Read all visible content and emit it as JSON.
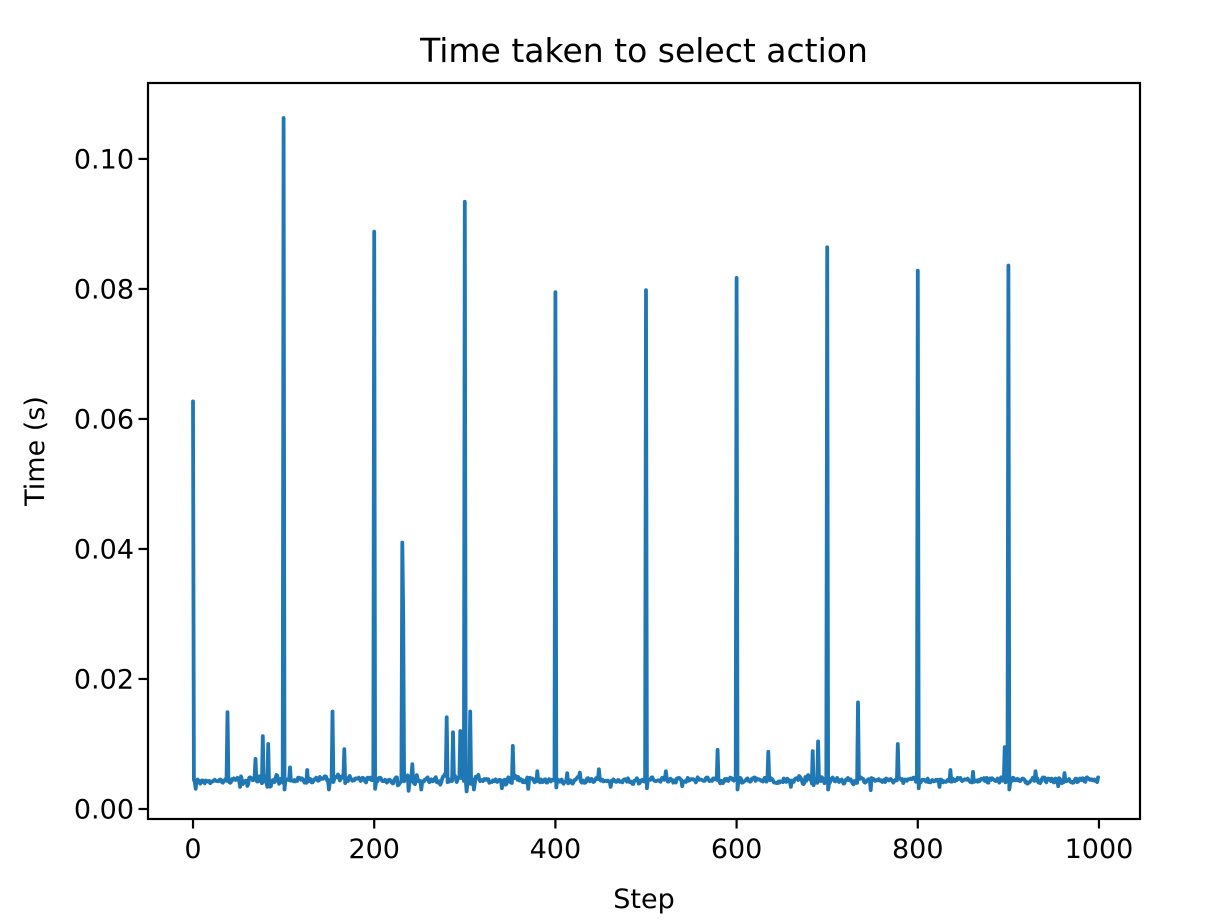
{
  "chart_data": {
    "type": "line",
    "title": "Time taken to select action",
    "xlabel": "Step",
    "ylabel": "Time (s)",
    "line_color": "#1f77b4",
    "axis_color": "#000000",
    "background_color": "#ffffff",
    "grid": false,
    "legend": false,
    "n_points": 1000,
    "xlim": [
      -49.7,
      1045.3
    ],
    "ylim": [
      -0.00154,
      0.11168
    ],
    "x_ticks": [
      0,
      200,
      400,
      600,
      800,
      1000
    ],
    "x_tick_labels": [
      "0",
      "200",
      "400",
      "600",
      "800",
      "1000"
    ],
    "y_ticks": [
      0.0,
      0.02,
      0.04,
      0.06,
      0.08,
      0.1
    ],
    "y_tick_labels": [
      "0.00",
      "0.02",
      "0.04",
      "0.06",
      "0.08",
      "0.10"
    ],
    "baseline": {
      "mean": 0.0044,
      "noise_amp": 0.0005
    },
    "noise_regions": [
      [
        55,
        95,
        0.0012
      ],
      [
        140,
        175,
        0.001
      ],
      [
        225,
        250,
        0.0012
      ],
      [
        268,
        315,
        0.0014
      ],
      [
        345,
        360,
        0.0009
      ],
      [
        670,
        698,
        0.0012
      ],
      [
        890,
        905,
        0.0009
      ]
    ],
    "spikes": [
      [
        0,
        0.0627
      ],
      [
        38,
        0.0149
      ],
      [
        69,
        0.0077
      ],
      [
        77,
        0.0112
      ],
      [
        83,
        0.01
      ],
      [
        100,
        0.1063
      ],
      [
        107,
        0.0064
      ],
      [
        126,
        0.006
      ],
      [
        154,
        0.015
      ],
      [
        167,
        0.0092
      ],
      [
        200,
        0.0888
      ],
      [
        231,
        0.041
      ],
      [
        232,
        0.0302
      ],
      [
        242,
        0.0069
      ],
      [
        280,
        0.0141
      ],
      [
        287,
        0.0118
      ],
      [
        295,
        0.012
      ],
      [
        300,
        0.0934
      ],
      [
        306,
        0.015
      ],
      [
        353,
        0.0097
      ],
      [
        380,
        0.0058
      ],
      [
        400,
        0.0795
      ],
      [
        413,
        0.0055
      ],
      [
        427,
        0.0056
      ],
      [
        448,
        0.0061
      ],
      [
        500,
        0.0798
      ],
      [
        522,
        0.0058
      ],
      [
        579,
        0.0091
      ],
      [
        600,
        0.0817
      ],
      [
        635,
        0.0088
      ],
      [
        684,
        0.0089
      ],
      [
        690,
        0.0104
      ],
      [
        700,
        0.0864
      ],
      [
        734,
        0.0164
      ],
      [
        778,
        0.01
      ],
      [
        800,
        0.0828
      ],
      [
        836,
        0.006
      ],
      [
        861,
        0.0057
      ],
      [
        896,
        0.0095
      ],
      [
        900,
        0.0836
      ],
      [
        930,
        0.0058
      ],
      [
        962,
        0.0055
      ]
    ],
    "dips": [
      [
        3,
        0.0031
      ],
      [
        52,
        0.0034
      ],
      [
        101,
        0.003
      ],
      [
        150,
        0.003
      ],
      [
        201,
        0.0031
      ],
      [
        238,
        0.0028
      ],
      [
        252,
        0.003
      ],
      [
        302,
        0.0027
      ],
      [
        310,
        0.003
      ],
      [
        341,
        0.0032
      ],
      [
        370,
        0.0031
      ],
      [
        401,
        0.0033
      ],
      [
        461,
        0.0034
      ],
      [
        501,
        0.0032
      ],
      [
        540,
        0.0035
      ],
      [
        601,
        0.003
      ],
      [
        660,
        0.0034
      ],
      [
        701,
        0.003
      ],
      [
        748,
        0.0029
      ],
      [
        801,
        0.0032
      ],
      [
        824,
        0.0034
      ],
      [
        901,
        0.003
      ],
      [
        955,
        0.0035
      ]
    ]
  }
}
